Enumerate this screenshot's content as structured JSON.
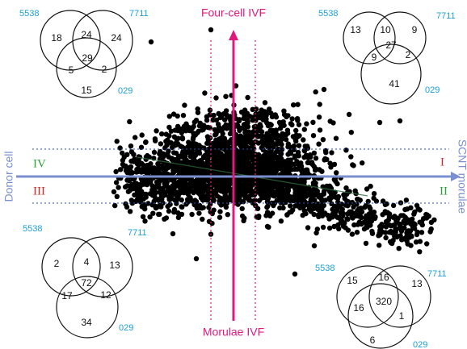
{
  "axes": {
    "top_label": "Four-cell IVF",
    "bottom_label": "Morulae IVF",
    "left_label": "Donor cell",
    "right_label": "SCNT morulae"
  },
  "quadrants": {
    "I": "I",
    "II": "II",
    "III": "III",
    "IV": "IV"
  },
  "colors": {
    "vertical_axis": "#e0197d",
    "horizontal_axis": "#7a8fd0",
    "set_label": "#1a9fd6",
    "quadrant_green": "#2e9e3e",
    "quadrant_red": "#cc2a2a",
    "points": "#000000"
  },
  "venns": {
    "top_left": {
      "labels": {
        "a": "5538",
        "b": "7711",
        "c": "029"
      },
      "regions": {
        "a_only": "18",
        "ab": "24",
        "b_only": "24",
        "abc": "29",
        "ac": "5",
        "bc": "2",
        "c_only": "15"
      }
    },
    "top_right": {
      "labels": {
        "a": "5538",
        "b": "7711",
        "c": "029"
      },
      "regions": {
        "a_only": "13",
        "ab": "10",
        "b_only": "9",
        "abc": "27",
        "ac": "9",
        "bc": "2",
        "c_only": "41"
      }
    },
    "bottom_left": {
      "labels": {
        "a": "5538",
        "b": "7711",
        "c": "029"
      },
      "regions": {
        "a_only": "2",
        "ab": "4",
        "b_only": "13",
        "abc": "72",
        "ac": "17",
        "bc": "12",
        "c_only": "34"
      }
    },
    "bottom_right": {
      "labels": {
        "a": "5538",
        "b": "7711",
        "c": "029"
      },
      "regions": {
        "a_only": "15",
        "ab": "16",
        "b_only": "13",
        "abc": "320",
        "ac": "16",
        "bc": "1",
        "c_only": "6"
      }
    }
  }
}
